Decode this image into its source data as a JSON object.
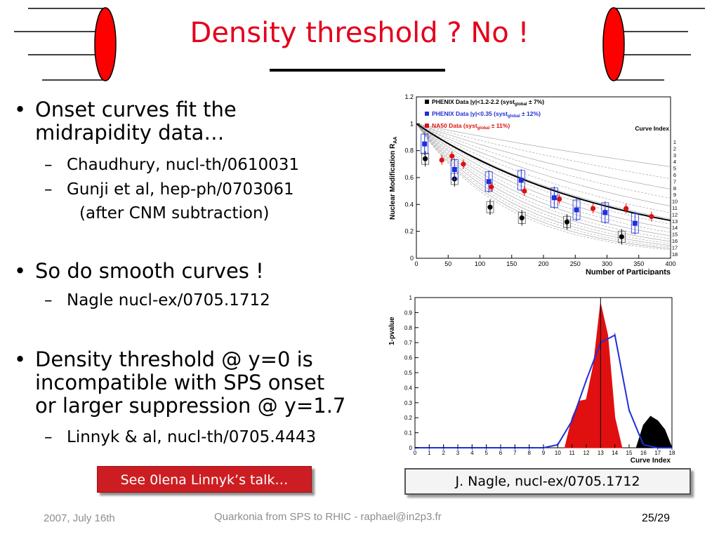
{
  "slide": {
    "title": "Density threshold ? No !",
    "bullets": [
      {
        "text_lines": [
          "Onset curves fit the",
          "midrapidity data…"
        ],
        "subs": [
          {
            "lines": [
              "Chaudhury, nucl-th/0610031"
            ]
          },
          {
            "lines": [
              "Gunji et al, hep-ph/0703061",
              "(after CNM subtraction)"
            ]
          }
        ]
      },
      {
        "text_lines": [
          "So do smooth curves !"
        ],
        "subs": [
          {
            "lines": [
              "Nagle nucl-ex/0705.1712"
            ]
          }
        ]
      },
      {
        "text_lines": [
          "Density threshold @ y=0 is",
          "incompatible with SPS onset",
          "or larger suppression @ y=1.7"
        ],
        "subs": [
          {
            "lines": [
              "Linnyk & al, nucl-th/0705.4443"
            ]
          }
        ]
      }
    ],
    "bullet_glyph": "•",
    "sub_glyph": "–",
    "button_label": "See 0lena Linnyk’s talk…",
    "ref_label": "J. Nagle, nucl-ex/0705.1712",
    "footer": {
      "date": "2007, July 16th",
      "center": "Quarkonia from SPS to RHIC - raphael@in2p3.fr",
      "page": "25/29"
    },
    "colors": {
      "title": "#e4001b",
      "button": "#cc1e22",
      "phenix_black": "#000000",
      "phenix_blue": "#1f2fd8",
      "na50_red": "#e01010"
    }
  },
  "chart_data": [
    {
      "type": "scatter",
      "xlabel": "Number of Participants",
      "ylabel": "Nuclear Modification R",
      "ylabel_sub": "AA",
      "xlim": [
        0,
        400
      ],
      "ylim": [
        0,
        1.2
      ],
      "xticks": [
        "0",
        "50",
        "100",
        "150",
        "200",
        "250",
        "300",
        "350",
        "400"
      ],
      "yticks": [
        "0",
        "0.2",
        "0.4",
        "0.6",
        "0.8",
        "1",
        "1.2"
      ],
      "legend": [
        {
          "pre": "PHENIX Data |y|<1.2-2.2 (syst",
          "sub": "global",
          "post": " ± 7%)",
          "color": "#000000"
        },
        {
          "pre": "PHENIX Data |y|<0.35 (syst",
          "sub": "global",
          "post": " ± 12%)",
          "color": "#1f2fd8"
        },
        {
          "pre": "NA50 Data     (syst",
          "sub": "global",
          "post": " ± 11%)",
          "color": "#e01010"
        }
      ],
      "curve_index_title": "Curve Index",
      "curve_index_labels": [
        "1",
        "2",
        "3",
        "4",
        "5",
        "6",
        "7",
        "8",
        "9",
        "10",
        "11",
        "12",
        "13",
        "14",
        "15",
        "16",
        "17",
        "18"
      ],
      "series": [
        {
          "name": "PHENIX Data |y|<1.2-2.2",
          "color": "#000000",
          "x": [
            14,
            60,
            116,
            166,
            237,
            323
          ],
          "y": [
            0.74,
            0.59,
            0.38,
            0.3,
            0.27,
            0.16
          ]
        },
        {
          "name": "PHENIX Data |y|<0.35",
          "color": "#1f2fd8",
          "x": [
            13,
            60,
            114,
            165,
            217,
            252,
            297,
            344
          ],
          "y": [
            0.85,
            0.66,
            0.57,
            0.58,
            0.45,
            0.36,
            0.34,
            0.26
          ]
        },
        {
          "name": "NA50 Data",
          "color": "#e01010",
          "x": [
            40,
            56,
            74,
            118,
            170,
            225,
            278,
            330,
            370
          ],
          "y": [
            0.73,
            0.76,
            0.7,
            0.53,
            0.5,
            0.44,
            0.37,
            0.37,
            0.31
          ]
        }
      ]
    },
    {
      "type": "area",
      "xlabel": "Curve Index",
      "ylabel": "1-pvalue",
      "xlim": [
        0,
        18
      ],
      "ylim": [
        0,
        1
      ],
      "xticks": [
        "0",
        "1",
        "2",
        "3",
        "4",
        "5",
        "6",
        "7",
        "8",
        "9",
        "10",
        "11",
        "12",
        "13",
        "14",
        "15",
        "16",
        "17",
        "18"
      ],
      "yticks": [
        "0",
        "0.1",
        "0.2",
        "0.3",
        "0.4",
        "0.5",
        "0.6",
        "0.7",
        "0.8",
        "0.9",
        "1"
      ],
      "series": [
        {
          "name": "",
          "color": "#e01010",
          "fill": true,
          "x": [
            10.5,
            11,
            11.5,
            12,
            12.5,
            13,
            13.5,
            14,
            14.5
          ],
          "y": [
            0,
            0.2,
            0.31,
            0.32,
            0.55,
            0.96,
            0.75,
            0.2,
            0
          ]
        },
        {
          "name": "",
          "color": "#000000",
          "fill": true,
          "x": [
            15.5,
            16,
            16.5,
            17,
            17.5,
            18
          ],
          "y": [
            0,
            0.15,
            0.21,
            0.18,
            0.12,
            0
          ]
        },
        {
          "name": "",
          "color": "#1f2fd8",
          "fill": false,
          "x": [
            0,
            1,
            2,
            3,
            4,
            5,
            6,
            7,
            8,
            9,
            10,
            11,
            12,
            13,
            14,
            15,
            16,
            17,
            18
          ],
          "y": [
            0,
            0,
            0,
            0,
            0,
            0,
            0,
            0,
            0,
            0,
            0.02,
            0.18,
            0.45,
            0.7,
            0.75,
            0.25,
            0.02,
            0,
            0
          ]
        }
      ],
      "marker_line_x": 13
    }
  ]
}
